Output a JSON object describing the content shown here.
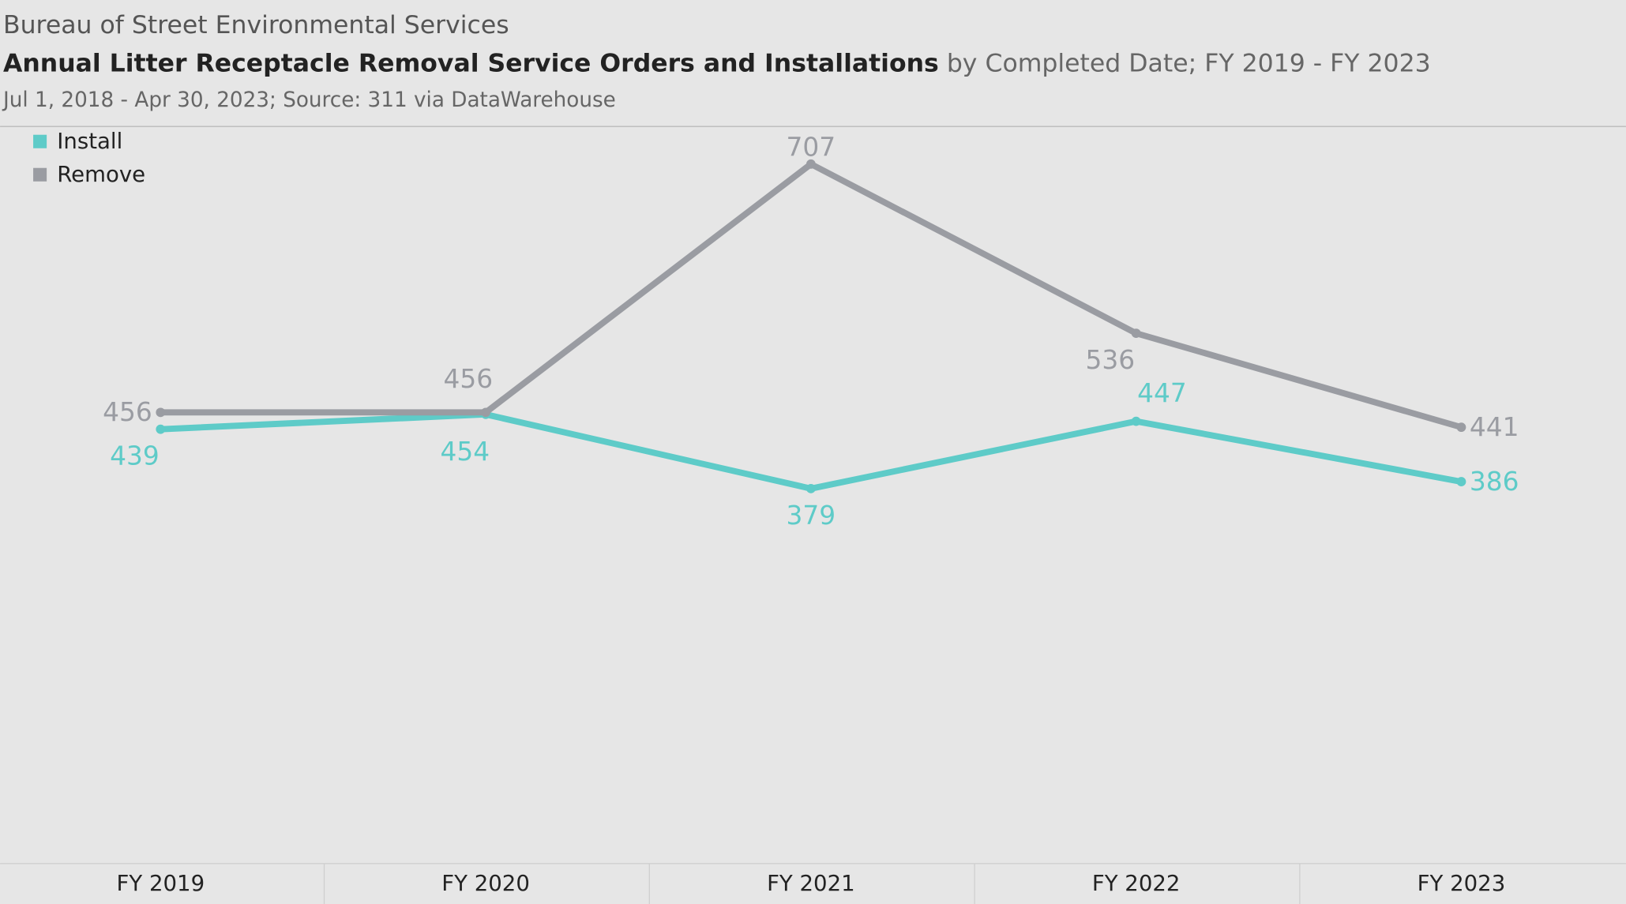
{
  "chart_data": {
    "type": "line",
    "header": "Bureau of Street Environmental Services",
    "title": "Annual Litter Receptacle Removal Service Orders and Installations",
    "title_detail": "by Completed Date; FY 2019 - FY 2023",
    "subtitle": "Jul 1, 2018 - Apr 30, 2023; Source: 311 via DataWarehouse",
    "categories": [
      "FY 2019",
      "FY 2020",
      "FY 2021",
      "FY 2022",
      "FY 2023"
    ],
    "series": [
      {
        "name": "Install",
        "color": "#5ecbc8",
        "values": [
          439,
          454,
          379,
          447,
          386
        ]
      },
      {
        "name": "Remove",
        "color": "#9a9ca2",
        "values": [
          456,
          456,
          707,
          536,
          441
        ]
      }
    ],
    "ylim": [
      0,
      745
    ],
    "legend": "top-left"
  }
}
